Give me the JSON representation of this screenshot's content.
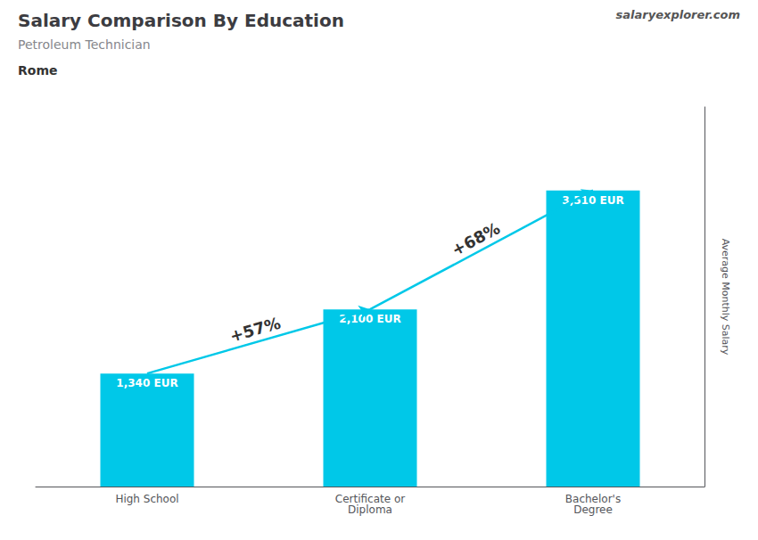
{
  "chart_data": {
    "type": "bar",
    "title": "Salary Comparison By Education",
    "subtitle": "Petroleum Technician",
    "categories": [
      "High School",
      "Certificate or\nDiploma",
      "Bachelor's\nDegree"
    ],
    "values": [
      1340,
      2100,
      3510
    ],
    "value_labels": [
      "1,340 EUR",
      "2,100 EUR",
      "3,510 EUR"
    ],
    "data_labels": true,
    "color": "#00c8e8",
    "ylabel": "Average Monthly Salary",
    "ylim": [
      0,
      4500
    ],
    "grid": false,
    "tick_labels": "x",
    "annotations": [
      {
        "text": "+57%",
        "from": "High School",
        "to": "Certificate or\nDiploma"
      },
      {
        "text": "+68%",
        "from": "Certificate or\nDiploma",
        "to": "Bachelor's\nDegree"
      },
      {
        "text": "Rome"
      },
      {
        "text": "salaryexplorer.com"
      }
    ]
  }
}
